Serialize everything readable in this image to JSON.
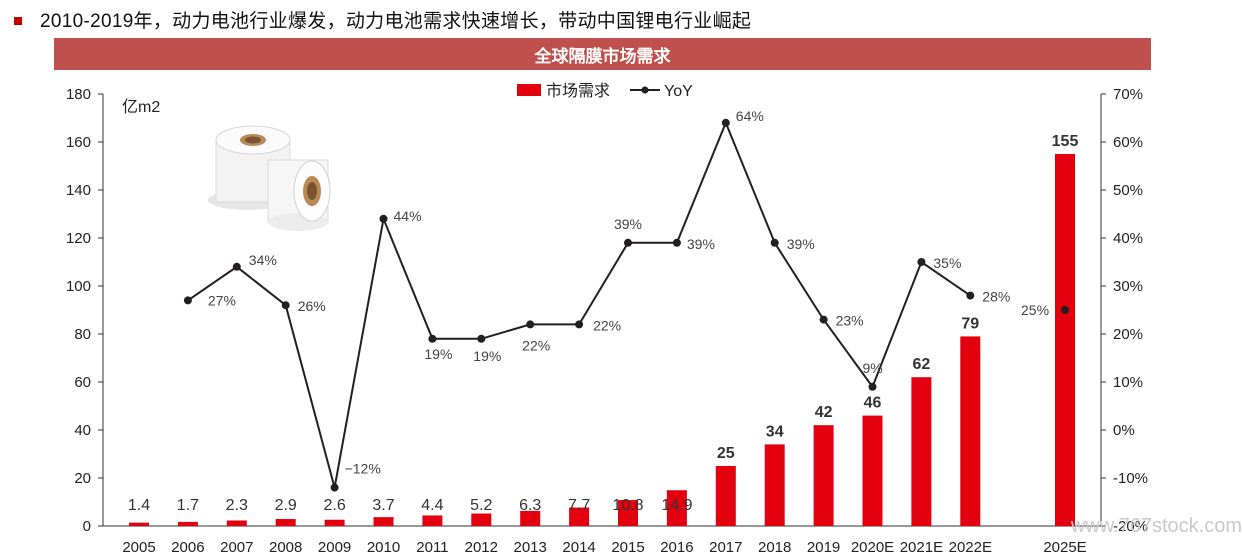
{
  "header": {
    "text": "2010-2019年，动力电池行业爆发，动力电池需求快速增长，带动中国锂电行业崛起"
  },
  "chart_title": "全球隔膜市场需求",
  "watermark": "www.767stock.com",
  "colors": {
    "bar": "#e3000f",
    "line": "#231f20",
    "title_bg": "#c0504d",
    "bullet": "#c00000"
  },
  "image_icon": "separator-film-rolls",
  "chart_data": {
    "type": "bar+line",
    "categories": [
      "2005",
      "2006",
      "2007",
      "2008",
      "2009",
      "2010",
      "2011",
      "2012",
      "2013",
      "2014",
      "2015",
      "2016",
      "2017",
      "2018",
      "2019",
      "2020E",
      "2021E",
      "2022E",
      "2025E"
    ],
    "series": [
      {
        "name": "市场需求",
        "type": "bar",
        "axis": "left",
        "values": [
          1.4,
          1.7,
          2.3,
          2.9,
          2.6,
          3.7,
          4.4,
          5.2,
          6.3,
          7.7,
          10.8,
          14.9,
          25,
          34,
          42,
          46,
          62,
          79,
          155
        ],
        "labels": [
          "1.4",
          "1.7",
          "2.3",
          "2.9",
          "2.6",
          "3.7",
          "4.4",
          "5.2",
          "6.3",
          "7.7",
          "10.8",
          "14.9",
          "25",
          "34",
          "42",
          "46",
          "62",
          "79",
          "155"
        ]
      },
      {
        "name": "YoY",
        "type": "line",
        "axis": "right",
        "values": [
          null,
          27,
          34,
          26,
          -12,
          44,
          19,
          19,
          22,
          22,
          39,
          39,
          64,
          39,
          23,
          9,
          35,
          28,
          25
        ],
        "labels": [
          "",
          "27%",
          "34%",
          "26%",
          "−12%",
          "44%",
          "19%",
          "19%",
          "22%",
          "22%",
          "39%",
          "39%",
          "64%",
          "39%",
          "23%",
          "9%",
          "35%",
          "28%",
          "25%"
        ]
      }
    ],
    "ylabel": "亿m2",
    "ylim": [
      0,
      180
    ],
    "yticks": [
      "0",
      "20",
      "40",
      "60",
      "80",
      "100",
      "120",
      "140",
      "160",
      "180"
    ],
    "y2lim": [
      -20,
      70
    ],
    "y2ticks": [
      "-20%",
      "-10%",
      "0%",
      "10%",
      "20%",
      "30%",
      "40%",
      "50%",
      "60%",
      "70%"
    ],
    "legend": "top-center"
  }
}
